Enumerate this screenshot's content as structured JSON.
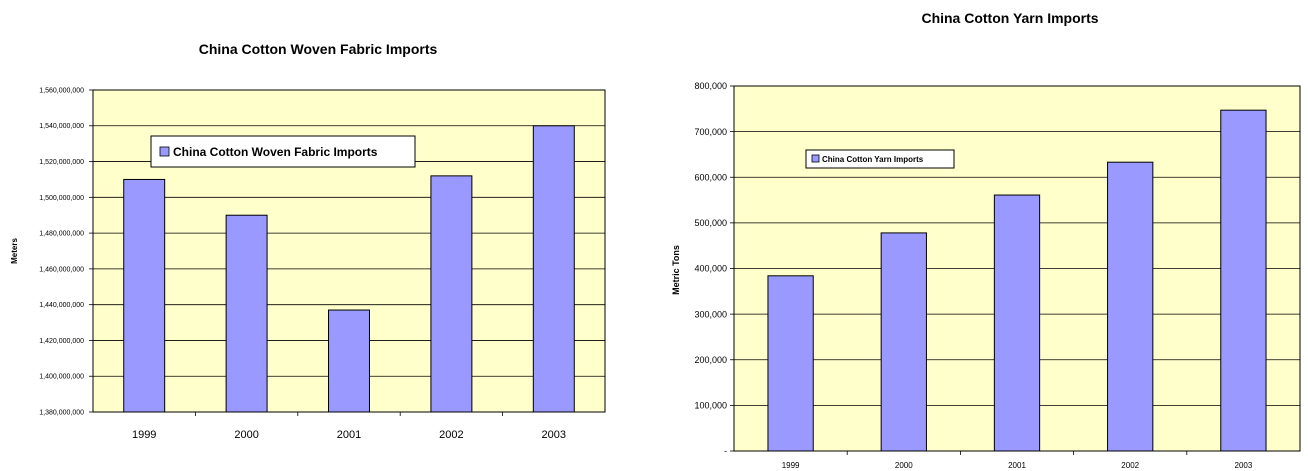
{
  "chart_data": [
    {
      "type": "bar",
      "title": "China Cotton Woven Fabric Imports",
      "xlabel": "",
      "ylabel": "Meters",
      "categories": [
        "1999",
        "2000",
        "2001",
        "2002",
        "2003"
      ],
      "series": [
        {
          "name": "China Cotton Woven Fabric Imports",
          "values": [
            1510000000,
            1490000000,
            1437000000,
            1512000000,
            1540000000
          ]
        }
      ],
      "ylim": [
        1380000000,
        1560000000
      ],
      "yticks": [
        "1,380,000,000",
        "1,400,000,000",
        "1,420,000,000",
        "1,440,000,000",
        "1,460,000,000",
        "1,480,000,000",
        "1,500,000,000",
        "1,520,000,000",
        "1,540,000,000",
        "1,560,000,000"
      ],
      "grid": true,
      "legend_position": "top-left",
      "colors": {
        "bar": "#9999ff",
        "plot_bg": "#ffffcc"
      }
    },
    {
      "type": "bar",
      "title": "China Cotton Yarn Imports",
      "xlabel": "",
      "ylabel": "Metric Tons",
      "categories": [
        "1999",
        "2000",
        "2001",
        "2002",
        "2003"
      ],
      "series": [
        {
          "name": "China Cotton Yarn Imports",
          "values": [
            384000,
            478000,
            561000,
            633000,
            747000
          ]
        }
      ],
      "ylim": [
        0,
        800000
      ],
      "yticks": [
        "-",
        "100,000",
        "200,000",
        "300,000",
        "400,000",
        "500,000",
        "600,000",
        "700,000",
        "800,000"
      ],
      "grid": true,
      "legend_position": "top-left",
      "colors": {
        "bar": "#9999ff",
        "plot_bg": "#ffffcc"
      }
    }
  ]
}
